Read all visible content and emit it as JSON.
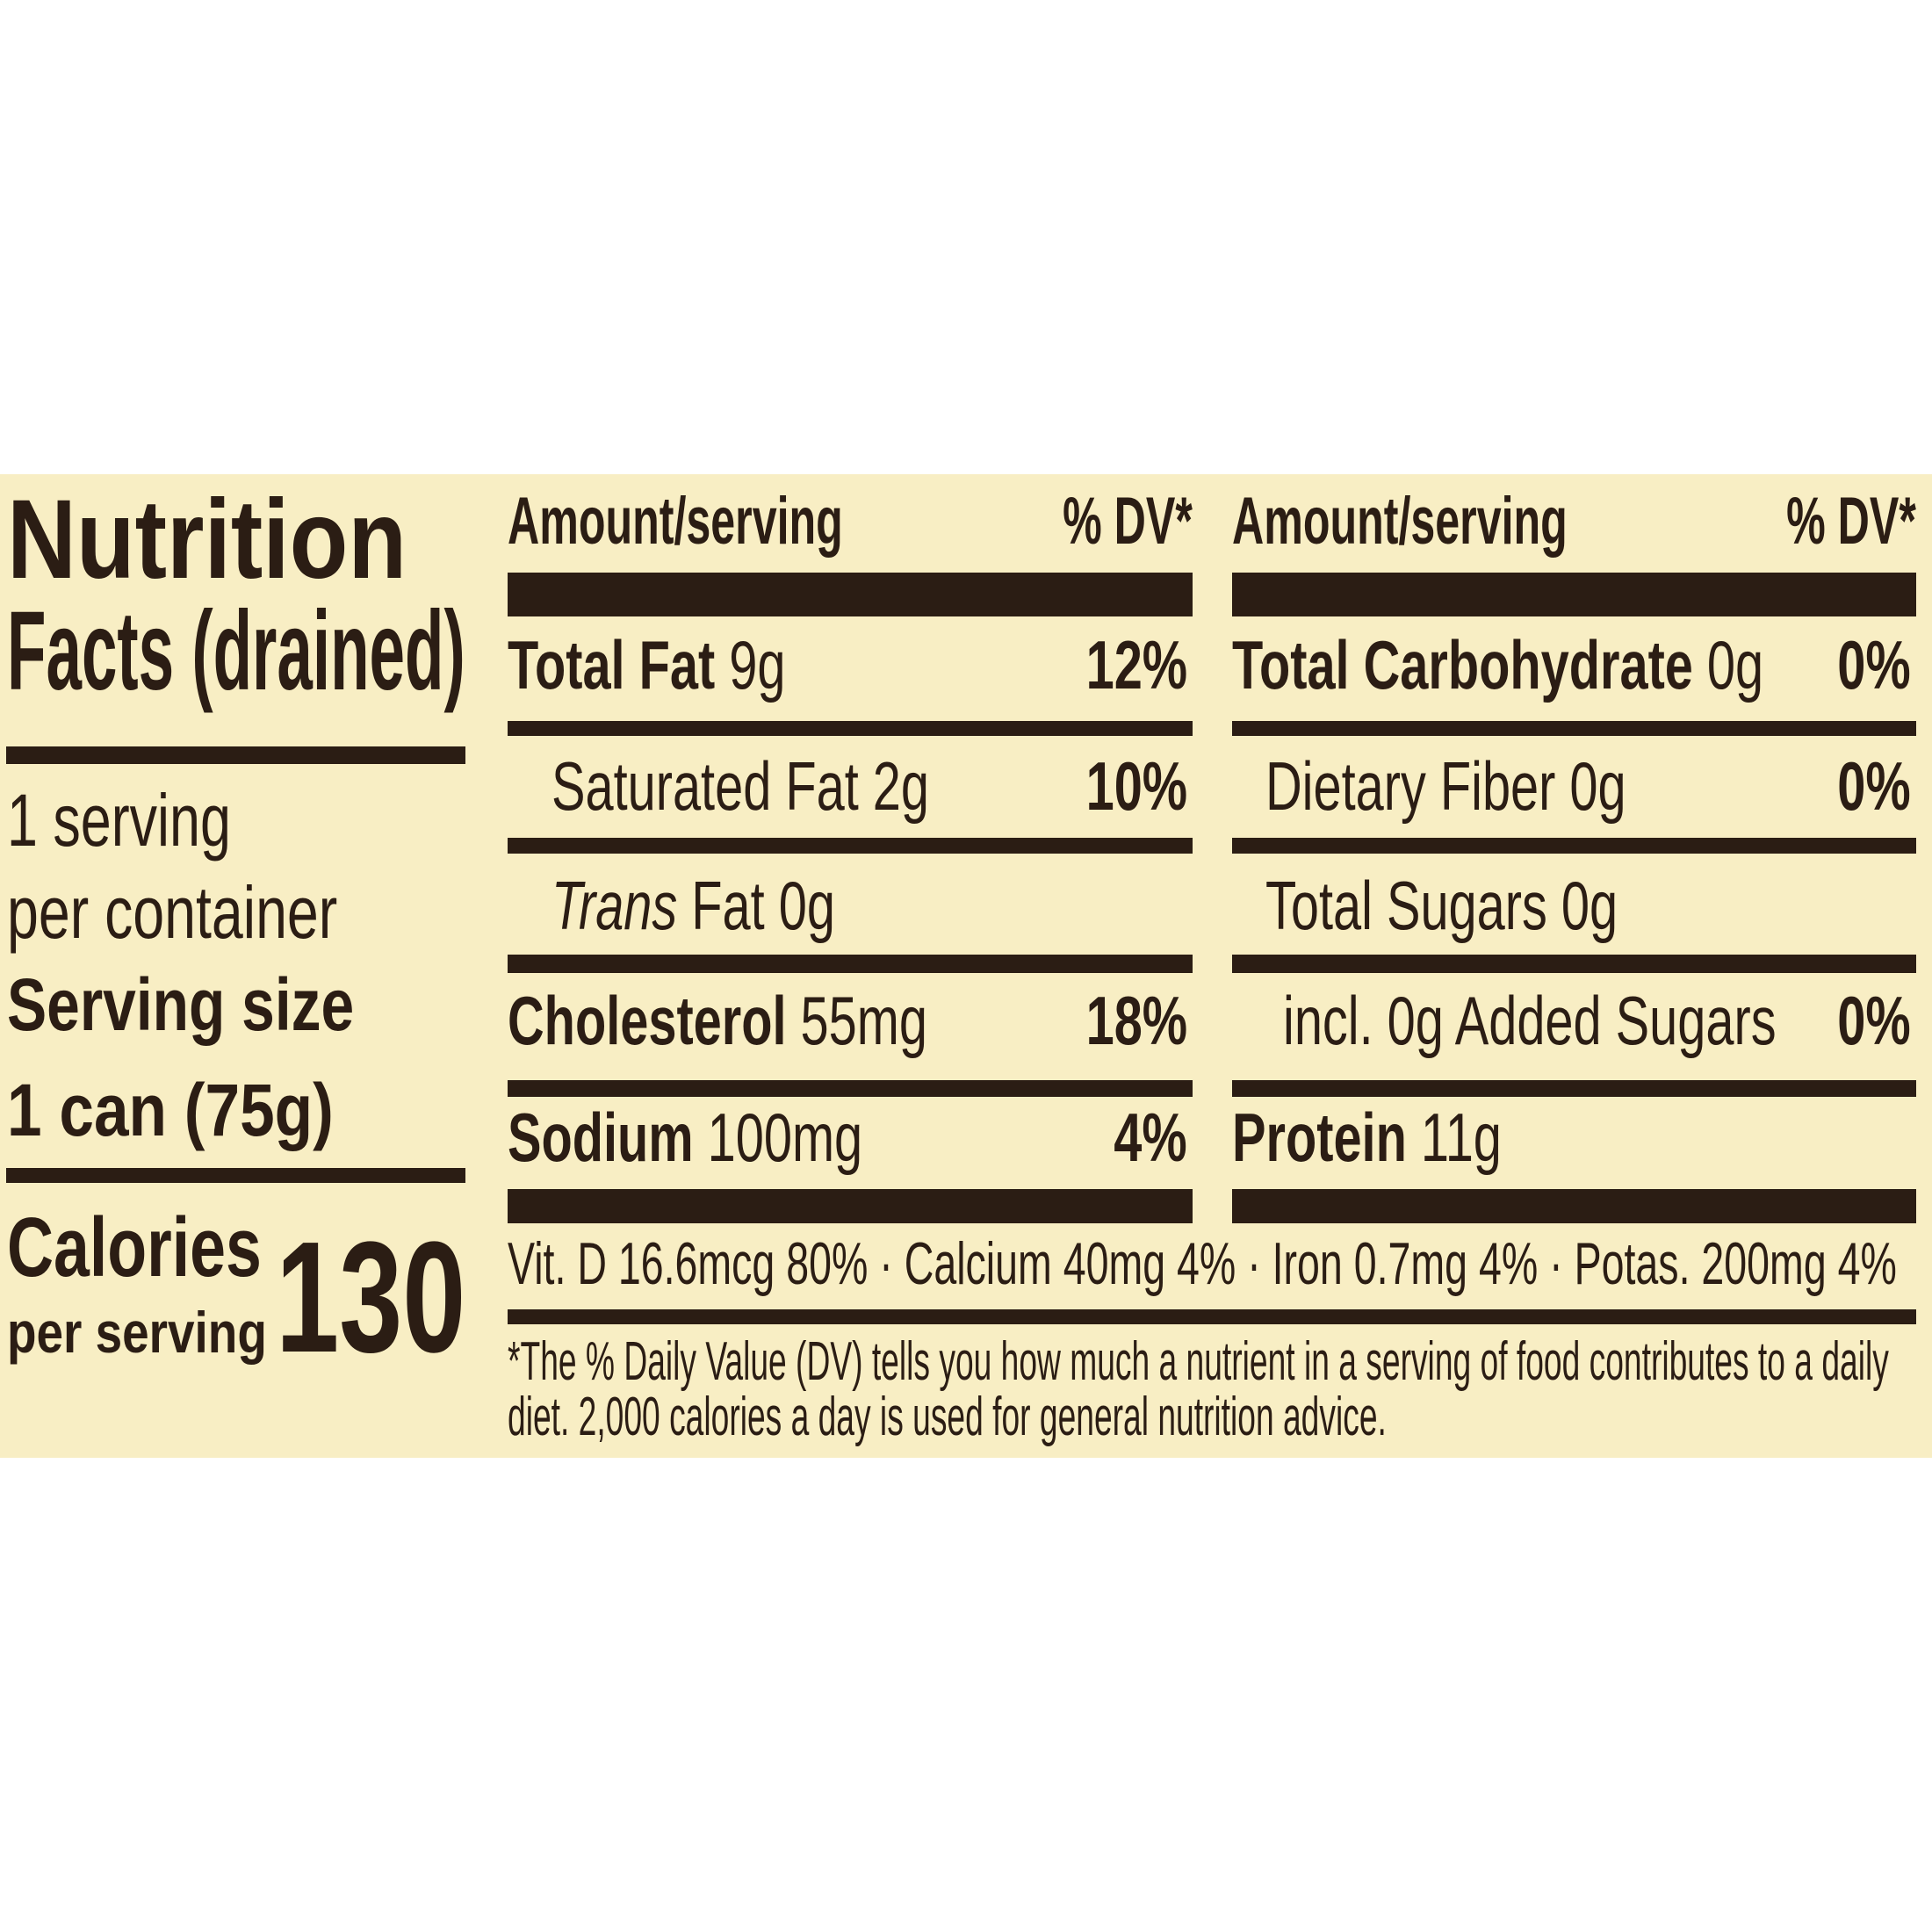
{
  "title_lines": [
    "Nutrition",
    "Facts (drained)"
  ],
  "servings_lines": [
    "1 serving",
    "per container"
  ],
  "serving_size": {
    "label": "Serving size",
    "value": "1 can (75g)"
  },
  "calories": {
    "label": "Calories",
    "sublabel": "per serving",
    "value": 130
  },
  "columns": [
    {
      "header_amount": "Amount/serving",
      "header_dv": "% DV*",
      "rows": [
        {
          "name": "Total Fat",
          "amount": "9g",
          "dv": "12%"
        },
        {
          "name": "Saturated Fat",
          "amount": "2g",
          "dv": "10%"
        },
        {
          "name_italic": "Trans",
          "name": "Fat",
          "amount": "0g"
        },
        {
          "name": "Cholesterol",
          "amount": "55mg",
          "dv": "18%"
        },
        {
          "name": "Sodium",
          "amount": "100mg",
          "dv": "4%"
        }
      ]
    },
    {
      "header_amount": "Amount/serving",
      "header_dv": "% DV*",
      "rows": [
        {
          "name": "Total Carbohydrate",
          "amount": "0g",
          "dv": "0%"
        },
        {
          "name": "Dietary Fiber",
          "amount": "0g",
          "dv": "0%"
        },
        {
          "name": "Total Sugars",
          "amount": "0g"
        },
        {
          "name": "incl. 0g Added Sugars",
          "dv": "0%"
        },
        {
          "name": "Protein",
          "amount": "11g"
        }
      ]
    }
  ],
  "vitamins": [
    "Vit. D 16.6mcg 80%",
    "Calcium 40mg 4%",
    "Iron 0.7mg 4%",
    "Potas. 200mg 4%"
  ],
  "footnote": "*The % Daily Value (DV) tells you how much a nutrient in a serving of food contributes to a daily diet. 2,000 calories a day is used for general nutrition advice."
}
